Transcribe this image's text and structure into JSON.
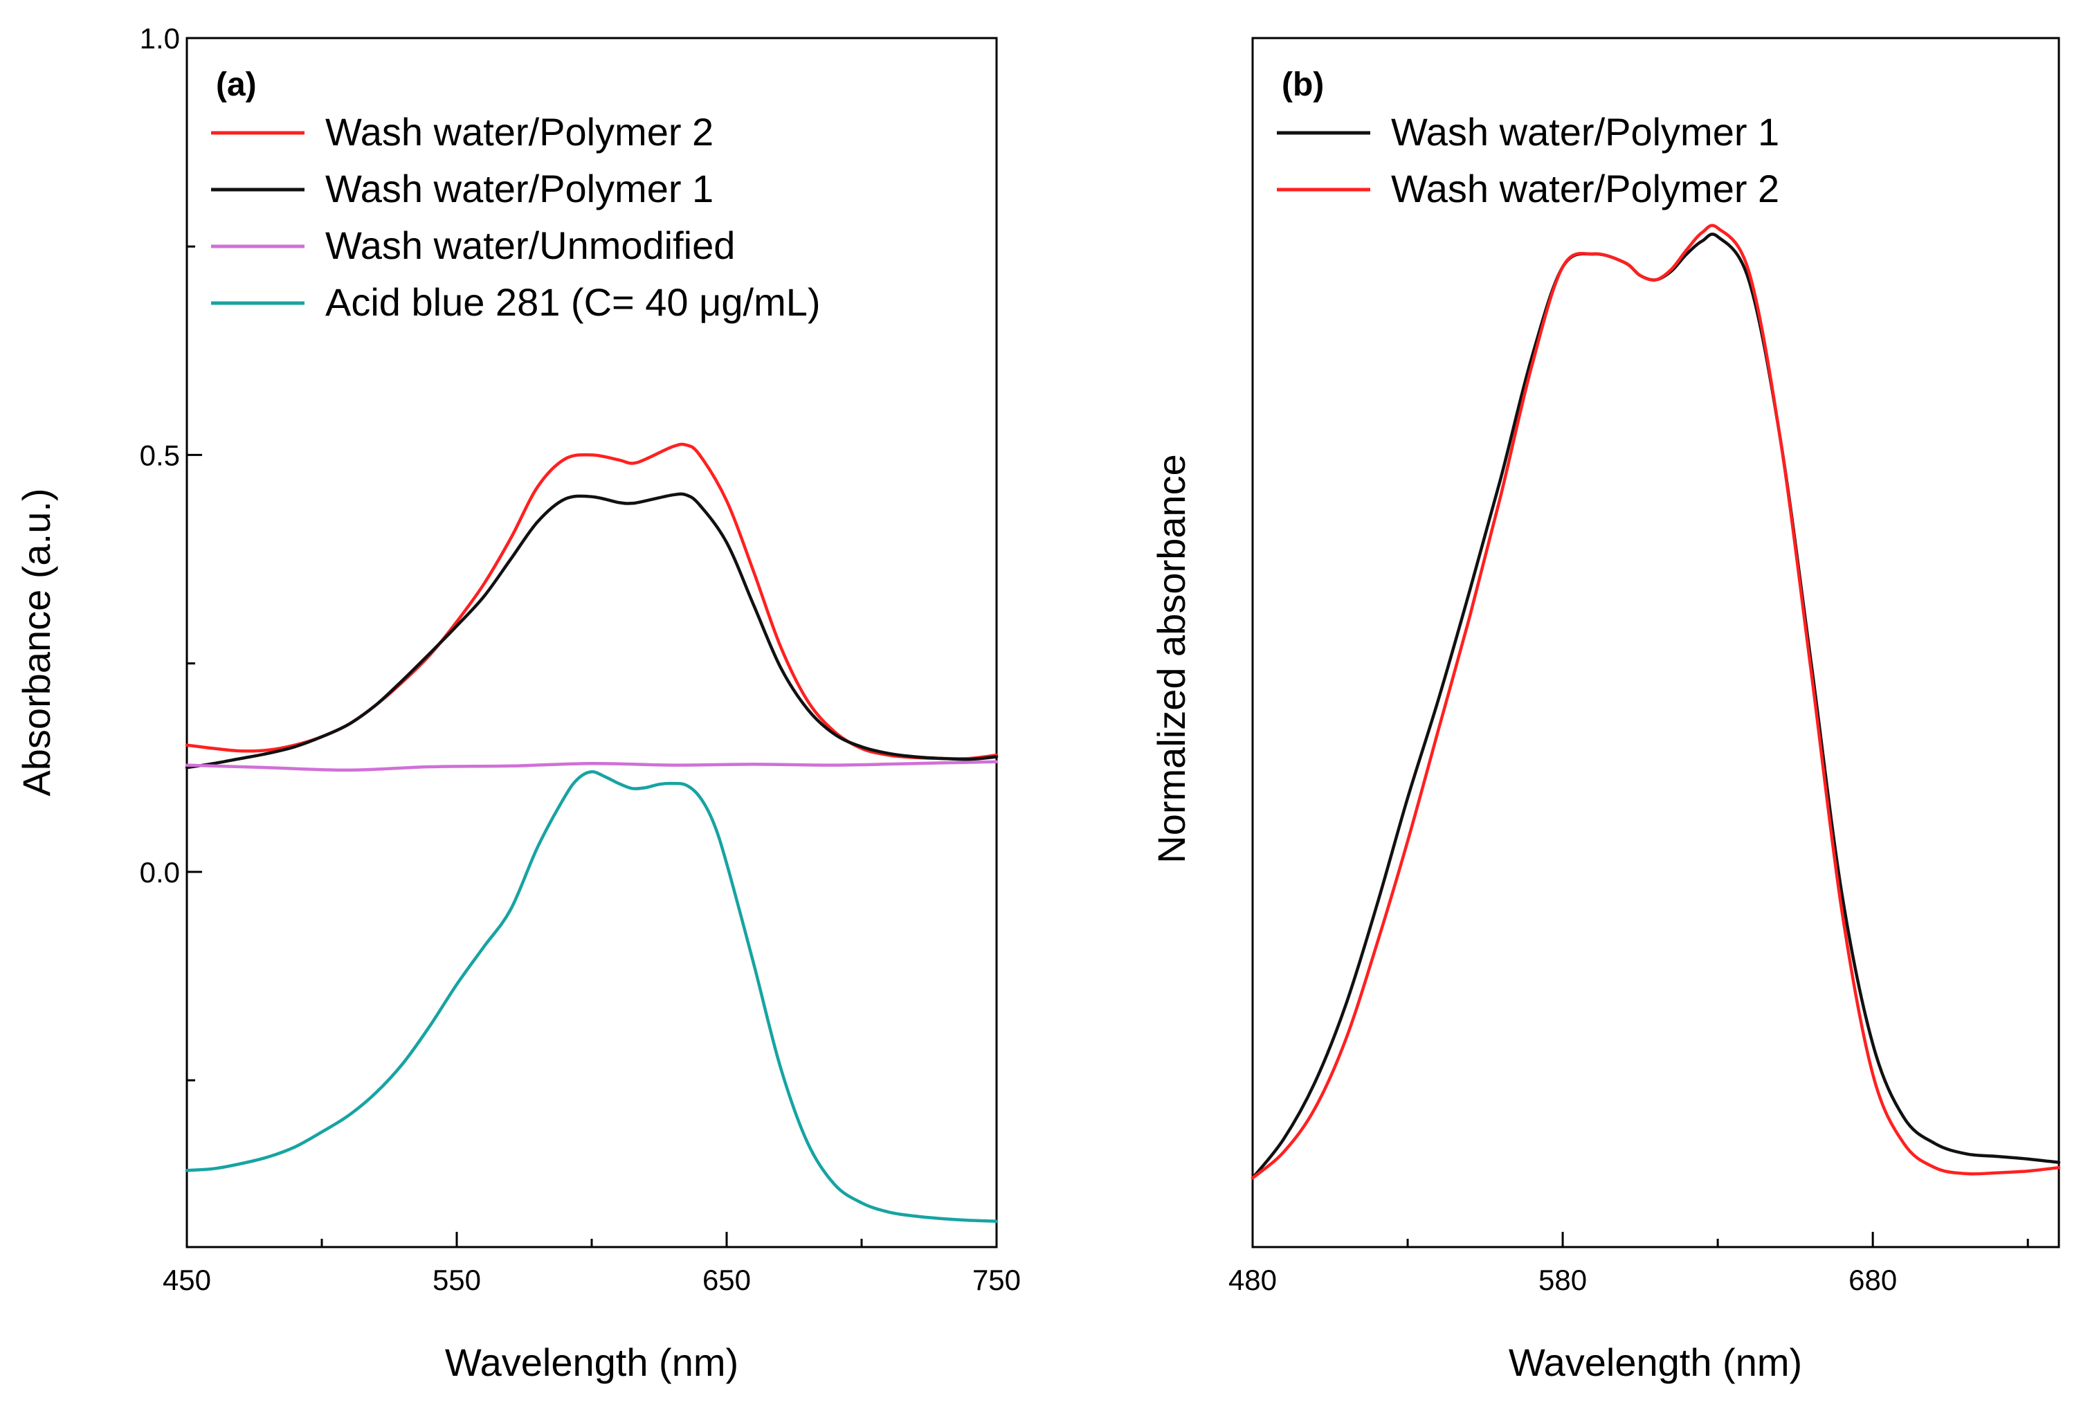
{
  "chart_data": [
    {
      "type": "line",
      "panel_label": "(a)",
      "xlabel": "Wavelength (nm)",
      "ylabel": "Absorbance (a.u.)",
      "xlim": [
        450,
        750
      ],
      "ylim": [
        -0.45,
        1.0
      ],
      "xticks": [
        "450",
        "550",
        "650",
        "750"
      ],
      "xtick_values": [
        450,
        550,
        650,
        750
      ],
      "yticks": [
        "0.0",
        "0.5",
        "1.0"
      ],
      "ytick_values": [
        0.0,
        0.5,
        1.0
      ],
      "legend_position": "top-left",
      "series": [
        {
          "name": "Wash water/Polymer 2",
          "color": "#ff2020",
          "x": [
            450,
            460,
            470,
            480,
            490,
            500,
            510,
            520,
            530,
            540,
            550,
            560,
            570,
            580,
            590,
            600,
            610,
            615,
            620,
            630,
            635,
            640,
            650,
            660,
            670,
            680,
            690,
            700,
            710,
            720,
            730,
            740,
            750
          ],
          "y": [
            0.152,
            0.148,
            0.145,
            0.146,
            0.152,
            0.162,
            0.177,
            0.2,
            0.228,
            0.26,
            0.3,
            0.345,
            0.4,
            0.462,
            0.495,
            0.5,
            0.494,
            0.49,
            0.495,
            0.51,
            0.512,
            0.5,
            0.445,
            0.36,
            0.27,
            0.205,
            0.168,
            0.148,
            0.14,
            0.137,
            0.136,
            0.136,
            0.14
          ]
        },
        {
          "name": "Wash water/Polymer 1",
          "color": "#111111",
          "x": [
            450,
            460,
            470,
            480,
            490,
            500,
            510,
            520,
            530,
            540,
            550,
            560,
            570,
            580,
            590,
            600,
            610,
            615,
            620,
            630,
            635,
            640,
            650,
            660,
            670,
            680,
            690,
            700,
            710,
            720,
            730,
            740,
            750
          ],
          "y": [
            0.125,
            0.13,
            0.136,
            0.142,
            0.15,
            0.162,
            0.177,
            0.2,
            0.23,
            0.262,
            0.295,
            0.33,
            0.375,
            0.42,
            0.447,
            0.45,
            0.443,
            0.442,
            0.445,
            0.452,
            0.452,
            0.44,
            0.395,
            0.32,
            0.245,
            0.195,
            0.165,
            0.15,
            0.142,
            0.138,
            0.136,
            0.135,
            0.138
          ]
        },
        {
          "name": "Wash water/Unmodified",
          "color": "#d070d8",
          "x": [
            450,
            480,
            510,
            540,
            570,
            600,
            630,
            660,
            690,
            720,
            750
          ],
          "y": [
            0.128,
            0.125,
            0.122,
            0.126,
            0.127,
            0.13,
            0.128,
            0.129,
            0.128,
            0.13,
            0.132
          ]
        },
        {
          "name": "Acid blue 281 (C= 40 μg/mL)",
          "color": "#17a3a3",
          "x": [
            450,
            460,
            470,
            480,
            490,
            500,
            510,
            520,
            530,
            540,
            550,
            560,
            570,
            580,
            590,
            595,
            600,
            605,
            610,
            615,
            620,
            625,
            630,
            635,
            640,
            645,
            650,
            660,
            670,
            680,
            690,
            700,
            710,
            720,
            730,
            740,
            750
          ],
          "y": [
            -0.358,
            -0.356,
            -0.35,
            -0.342,
            -0.33,
            -0.312,
            -0.292,
            -0.265,
            -0.23,
            -0.185,
            -0.135,
            -0.09,
            -0.045,
            0.03,
            0.09,
            0.112,
            0.12,
            0.114,
            0.106,
            0.1,
            0.101,
            0.105,
            0.106,
            0.104,
            0.09,
            0.06,
            0.01,
            -0.11,
            -0.235,
            -0.325,
            -0.375,
            -0.397,
            -0.408,
            -0.413,
            -0.416,
            -0.418,
            -0.419
          ]
        }
      ]
    },
    {
      "type": "line",
      "panel_label": "(b)",
      "xlabel": "Wavelength (nm)",
      "ylabel": "Normalized absorbance",
      "xlim": [
        480,
        740
      ],
      "ylim": [
        -0.08,
        1.32
      ],
      "xticks": [
        "480",
        "580",
        "680"
      ],
      "xtick_values": [
        480,
        580,
        680
      ],
      "yticks": [],
      "ytick_values": [],
      "legend_position": "top-left",
      "series": [
        {
          "name": "Wash water/Polymer 1",
          "color": "#111111",
          "x": [
            480,
            490,
            500,
            510,
            520,
            530,
            540,
            550,
            560,
            570,
            580,
            590,
            600,
            605,
            610,
            615,
            620,
            625,
            630,
            640,
            650,
            660,
            670,
            680,
            690,
            700,
            710,
            720,
            730,
            740
          ],
          "y": [
            0.0,
            0.045,
            0.11,
            0.2,
            0.315,
            0.44,
            0.555,
            0.68,
            0.81,
            0.95,
            1.055,
            1.07,
            1.06,
            1.045,
            1.04,
            1.05,
            1.07,
            1.085,
            1.09,
            1.04,
            0.86,
            0.6,
            0.33,
            0.155,
            0.07,
            0.04,
            0.028,
            0.025,
            0.022,
            0.018
          ]
        },
        {
          "name": "Wash water/Polymer 2",
          "color": "#ff2020",
          "x": [
            480,
            490,
            500,
            510,
            520,
            530,
            540,
            550,
            560,
            570,
            580,
            590,
            600,
            605,
            610,
            615,
            620,
            625,
            630,
            640,
            650,
            660,
            670,
            680,
            690,
            700,
            710,
            720,
            730,
            740
          ],
          "y": [
            0.0,
            0.03,
            0.08,
            0.16,
            0.27,
            0.39,
            0.52,
            0.65,
            0.79,
            0.94,
            1.055,
            1.07,
            1.06,
            1.045,
            1.04,
            1.052,
            1.075,
            1.095,
            1.1,
            1.05,
            0.86,
            0.59,
            0.31,
            0.12,
            0.04,
            0.012,
            0.005,
            0.006,
            0.008,
            0.012
          ]
        }
      ]
    }
  ]
}
